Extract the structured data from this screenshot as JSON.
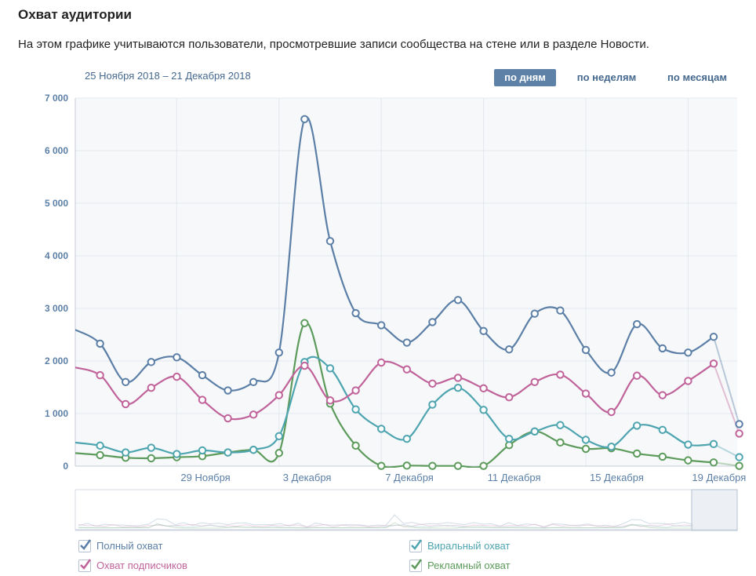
{
  "header": {
    "title": "Охват аудитории",
    "description": "На этом графике учитываются пользователи, просмотревшие записи сообщества на стене или в разделе Новости.",
    "date_range": "25 Ноября 2018 – 21 Декабря 2018"
  },
  "period_tabs": [
    {
      "label": "по дням",
      "active": true
    },
    {
      "label": "по неделям",
      "active": false
    },
    {
      "label": "по месяцам",
      "active": false
    }
  ],
  "legend": [
    {
      "label": "Полный охват",
      "color": "#5b7fa6",
      "checked": true
    },
    {
      "label": "Охват подписчиков",
      "color": "#c0639a",
      "checked": true
    },
    {
      "label": "Виральный охват",
      "color": "#4ea5b0",
      "checked": true
    },
    {
      "label": "Рекламный охват",
      "color": "#5c9b5c",
      "checked": true
    }
  ],
  "chart_data": {
    "type": "line",
    "ylim": [
      0,
      7000
    ],
    "y_ticks": [
      "0",
      "1 000",
      "2 000",
      "3 000",
      "4 000",
      "5 000",
      "6 000",
      "7 000"
    ],
    "x_ticks": [
      {
        "x": 4,
        "label": "29 Ноября"
      },
      {
        "x": 8,
        "label": "3 Декабря"
      },
      {
        "x": 12,
        "label": "7 Декабря"
      },
      {
        "x": 16,
        "label": "11 Декабря"
      },
      {
        "x": 20,
        "label": "15 Декабря"
      },
      {
        "x": 24,
        "label": "19 Декабря"
      }
    ],
    "x": [
      0,
      1,
      2,
      3,
      4,
      5,
      6,
      7,
      8,
      9,
      10,
      11,
      12,
      13,
      14,
      15,
      16,
      17,
      18,
      19,
      20,
      21,
      22,
      23,
      24,
      25,
      26,
      27
    ],
    "grid": true,
    "series": [
      {
        "name": "Полный охват",
        "color": "#5b7fa6",
        "values": [
          2600,
          2330,
          1600,
          1980,
          2070,
          1730,
          1440,
          1600,
          2160,
          6600,
          4280,
          2910,
          2680,
          2350,
          2740,
          3160,
          2570,
          2220,
          2900,
          2960,
          2210,
          1780,
          2700,
          2240,
          2160,
          2460,
          800,
          null
        ]
      },
      {
        "name": "Охват подписчиков",
        "color": "#c0639a",
        "values": [
          1880,
          1730,
          1180,
          1490,
          1700,
          1260,
          910,
          980,
          1350,
          1910,
          1250,
          1440,
          1970,
          1840,
          1570,
          1680,
          1480,
          1310,
          1600,
          1740,
          1380,
          1030,
          1720,
          1350,
          1620,
          1950,
          620,
          null
        ]
      },
      {
        "name": "Виральный охват",
        "color": "#4ea5b0",
        "values": [
          450,
          390,
          260,
          350,
          230,
          300,
          260,
          310,
          570,
          1980,
          1860,
          1080,
          710,
          520,
          1170,
          1490,
          1070,
          520,
          660,
          780,
          500,
          370,
          770,
          690,
          410,
          420,
          170,
          null
        ]
      },
      {
        "name": "Рекламный охват",
        "color": "#5c9b5c",
        "values": [
          250,
          210,
          160,
          150,
          170,
          190,
          260,
          310,
          250,
          2720,
          1190,
          390,
          5,
          10,
          5,
          5,
          5,
          400,
          660,
          450,
          330,
          340,
          240,
          180,
          110,
          70,
          5,
          null
        ]
      }
    ]
  }
}
